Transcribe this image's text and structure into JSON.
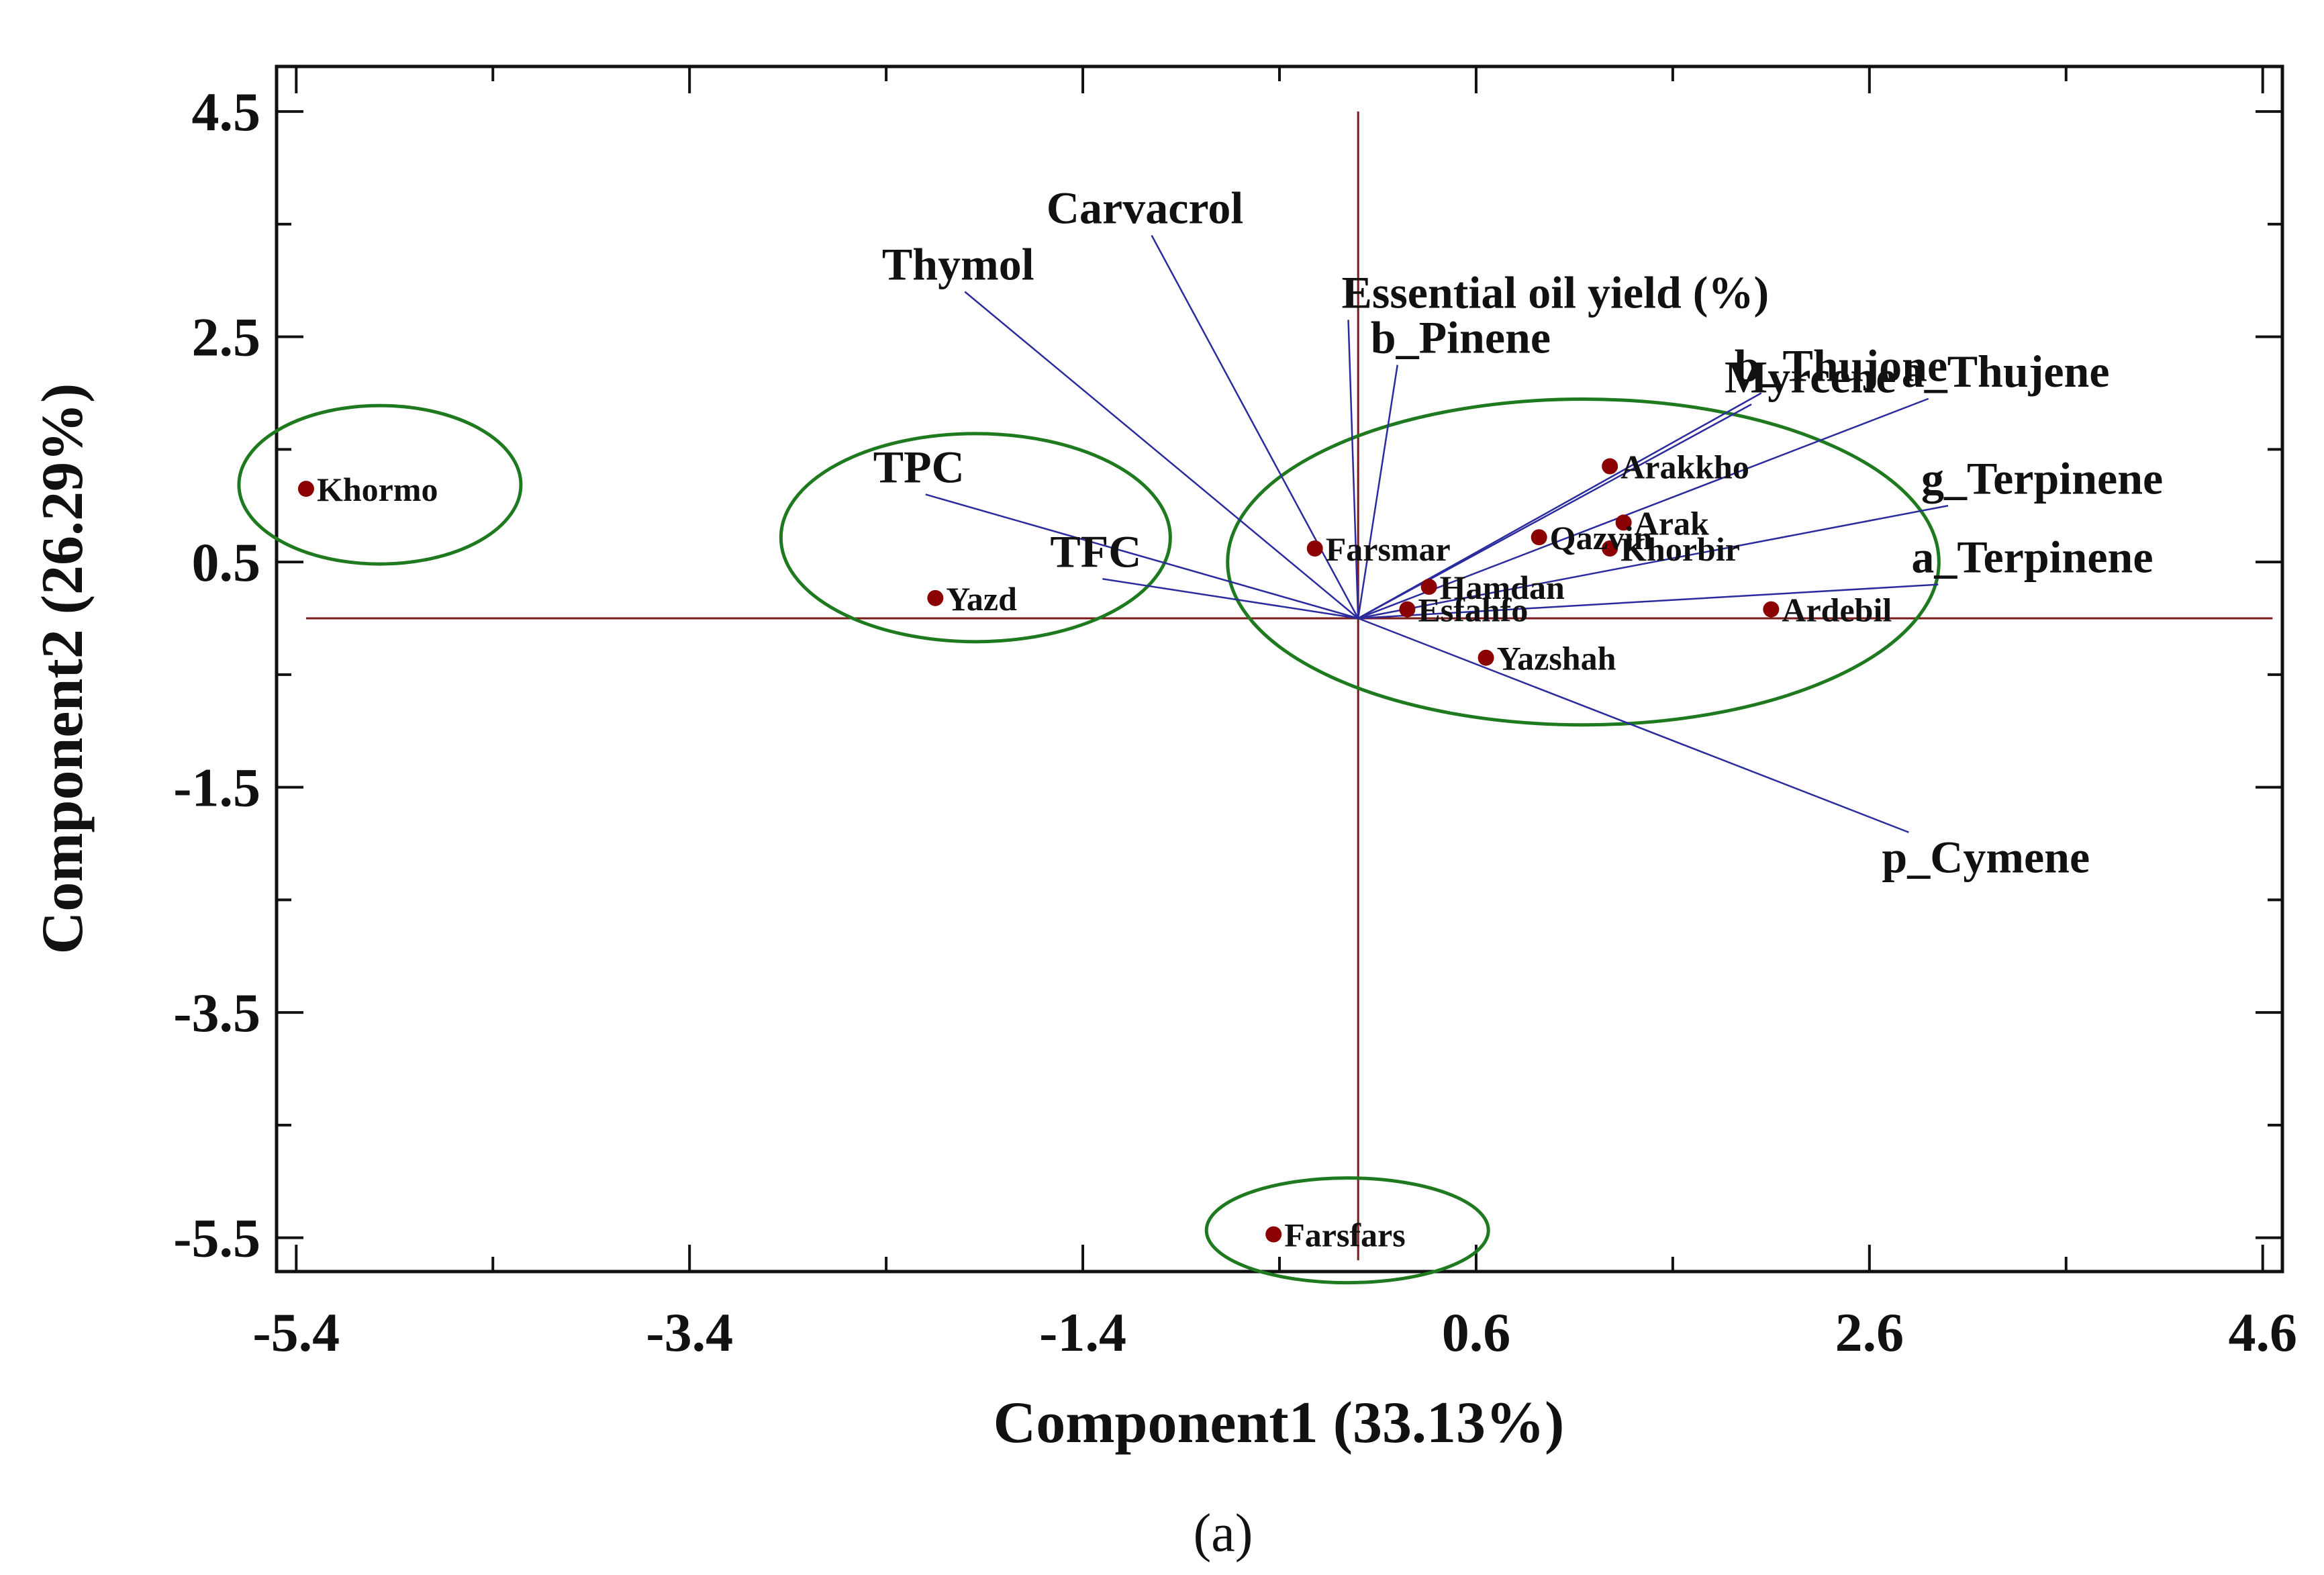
{
  "chart_data": {
    "type": "scatter",
    "subtype": "biplot",
    "xlabel": "Component1 (33.13%)",
    "ylabel": "Component2 (26.29%)",
    "xlim": [
      -5.5,
      4.7
    ],
    "ylim": [
      -5.8,
      4.9
    ],
    "xticks": [
      -5.4,
      -3.4,
      -1.4,
      0.6,
      2.6,
      4.6
    ],
    "yticks": [
      4.5,
      2.5,
      0.5,
      -1.5,
      -3.5,
      -5.5
    ],
    "xtick_labels": [
      "-5.4",
      "-3.4",
      "-1.4",
      "0.6",
      "2.6",
      "4.6"
    ],
    "ytick_labels": [
      "4.5",
      "2.5",
      "0.5",
      "-1.5",
      "-3.5",
      "-5.5"
    ],
    "origin": [
      0.0,
      0.0
    ],
    "colors": {
      "points": "#8b0000",
      "vectors": "#2b2b9e",
      "ellipses": "#1f7a1f",
      "reference": "#7a1a1a"
    },
    "observations": [
      {
        "name": "Khormo",
        "x": -5.35,
        "y": 1.15
      },
      {
        "name": "Yazd",
        "x": -2.15,
        "y": 0.18
      },
      {
        "name": "Farsmar",
        "x": -0.22,
        "y": 0.62
      },
      {
        "name": "Qazvin",
        "x": 0.92,
        "y": 0.72
      },
      {
        "name": "Arakkho",
        "x": 1.28,
        "y": 1.35
      },
      {
        "name": "Arak",
        "x": 1.35,
        "y": 0.85
      },
      {
        "name": "Khorbir",
        "x": 1.28,
        "y": 0.62
      },
      {
        "name": "Hamdan",
        "x": 0.36,
        "y": 0.28
      },
      {
        "name": "Esfahfo",
        "x": 0.25,
        "y": 0.08
      },
      {
        "name": "Yazshah",
        "x": 0.65,
        "y": -0.35
      },
      {
        "name": "Ardebil",
        "x": 2.1,
        "y": 0.08
      },
      {
        "name": "Farsfars",
        "x": -0.43,
        "y": -5.47
      }
    ],
    "variables": [
      {
        "name": "Carvacrol",
        "x": -1.05,
        "y": 3.4
      },
      {
        "name": "Thymol",
        "x": -2.0,
        "y": 2.9
      },
      {
        "name": "Essential oil yield (%)",
        "x": -0.05,
        "y": 2.65
      },
      {
        "name": "b_Pinene",
        "x": 0.2,
        "y": 2.25
      },
      {
        "name": "b_Thujone",
        "x": 2.05,
        "y": 2.0
      },
      {
        "name": "Myrcene",
        "x": 2.0,
        "y": 1.9
      },
      {
        "name": "a_Thujene",
        "x": 2.9,
        "y": 1.95
      },
      {
        "name": "g_Terpinene",
        "x": 3.0,
        "y": 1.0
      },
      {
        "name": "a_Terpinene",
        "x": 2.95,
        "y": 0.3
      },
      {
        "name": "TPC",
        "x": -2.2,
        "y": 1.1
      },
      {
        "name": "TFC",
        "x": -1.3,
        "y": 0.35
      },
      {
        "name": "p_Cymene",
        "x": 2.8,
        "y": -1.9
      }
    ],
    "clusters": [
      {
        "members": [
          "Khormo"
        ]
      },
      {
        "members": [
          "Yazd"
        ]
      },
      {
        "members": [
          "Farsmar",
          "Qazvin",
          "Arakkho",
          "Arak",
          "Khorbir",
          "Hamdan",
          "Esfahfo",
          "Yazshah",
          "Ardebil"
        ]
      },
      {
        "members": [
          "Farsfars"
        ]
      }
    ],
    "caption": "(a)"
  }
}
